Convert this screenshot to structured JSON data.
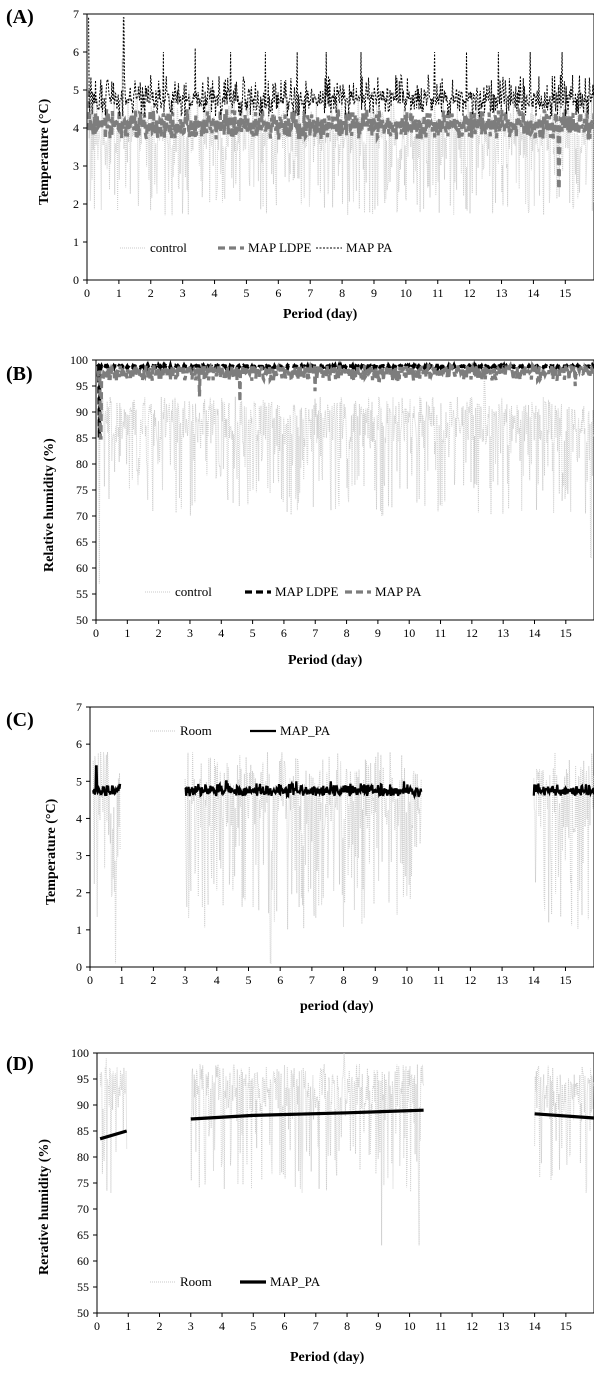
{
  "colors": {
    "light_gray": "#c8c8c8",
    "mid_gray": "#7d7d7d",
    "black": "#000000"
  },
  "chart_data": [
    {
      "id": "A",
      "panel_label": "(A)",
      "type": "line",
      "xlabel": "Period (day)",
      "ylabel": "Temperature (°C)",
      "xlim": [
        0,
        15.9
      ],
      "ylim": [
        0,
        7
      ],
      "xticks": [
        0,
        1,
        2,
        3,
        4,
        5,
        6,
        7,
        8,
        9,
        10,
        11,
        12,
        13,
        14,
        15
      ],
      "yticks": [
        0,
        1,
        2,
        3,
        4,
        5,
        6,
        7
      ],
      "grid": false,
      "legend_position": "lower-left",
      "series": [
        {
          "name": "control",
          "style": "light-dotted",
          "color": "#c8c8c8",
          "base": 3.9,
          "low": 1.7,
          "high": 4.9,
          "spikes": [
            [
              0.05,
              6.2
            ],
            [
              1.1,
              5.8
            ],
            [
              3.2,
              5.0
            ]
          ]
        },
        {
          "name": "MAP LDPE",
          "style": "gray-thick-dash",
          "color": "#7d7d7d",
          "base": 4.1,
          "low": 3.7,
          "high": 4.5,
          "spikes": [
            [
              0.05,
              5.0
            ],
            [
              14.8,
              2.4
            ]
          ]
        },
        {
          "name": "MAP PA",
          "style": "black-dotted",
          "color": "#000000",
          "base": 4.8,
          "low": 4.3,
          "high": 5.4,
          "spikes": [
            [
              0.05,
              6.9
            ],
            [
              1.15,
              6.9
            ],
            [
              2.4,
              6.0
            ],
            [
              3.4,
              6.1
            ],
            [
              4.5,
              6.0
            ],
            [
              5.6,
              6.0
            ],
            [
              6.6,
              6.0
            ],
            [
              7.5,
              6.0
            ],
            [
              8.6,
              6.0
            ],
            [
              10.9,
              6.0
            ],
            [
              11.9,
              6.0
            ],
            [
              12.9,
              6.0
            ],
            [
              13.9,
              6.0
            ],
            [
              14.9,
              6.0
            ]
          ]
        }
      ]
    },
    {
      "id": "B",
      "panel_label": "(B)",
      "type": "line",
      "xlabel": "Period (day)",
      "ylabel": "Relative humidity (%)",
      "xlim": [
        0,
        15.9
      ],
      "ylim": [
        50,
        100
      ],
      "xticks": [
        0,
        1,
        2,
        3,
        4,
        5,
        6,
        7,
        8,
        9,
        10,
        11,
        12,
        13,
        14,
        15
      ],
      "yticks": [
        50,
        55,
        60,
        65,
        70,
        75,
        80,
        85,
        90,
        95,
        100
      ],
      "grid": false,
      "legend_position": "lower-center",
      "series": [
        {
          "name": "control",
          "style": "light-dotted",
          "color": "#c8c8c8",
          "base": 88,
          "low": 70,
          "high": 93,
          "spikes": [
            [
              0.1,
              57
            ],
            [
              12.4,
              96
            ],
            [
              15.8,
              62
            ]
          ]
        },
        {
          "name": "MAP LDPE",
          "style": "black-thick-dash",
          "color": "#000000",
          "base": 98.8,
          "low": 98.5,
          "high": 99.0,
          "spikes": [
            [
              0.1,
              85
            ]
          ]
        },
        {
          "name": "MAP PA",
          "style": "gray-thick-dash",
          "color": "#7d7d7d",
          "base": 97.8,
          "low": 96.0,
          "high": 99.0,
          "spikes": [
            [
              0.15,
              85
            ],
            [
              3.3,
              93
            ],
            [
              4.6,
              92
            ],
            [
              7.0,
              94
            ],
            [
              15.3,
              95
            ]
          ]
        }
      ]
    },
    {
      "id": "C",
      "panel_label": "(C)",
      "type": "line",
      "xlabel": "period (day)",
      "ylabel": "Temperature (°C)",
      "xlim": [
        0,
        15.9
      ],
      "ylim": [
        0,
        7
      ],
      "xticks": [
        0,
        1,
        2,
        3,
        4,
        5,
        6,
        7,
        8,
        9,
        10,
        11,
        12,
        13,
        14,
        15
      ],
      "yticks": [
        0,
        1,
        2,
        3,
        4,
        5,
        6,
        7
      ],
      "grid": false,
      "legend_position": "top-left",
      "segments": [
        [
          0.1,
          0.95
        ],
        [
          3.0,
          10.45
        ],
        [
          14.0,
          15.9
        ]
      ],
      "series": [
        {
          "name": "Room",
          "style": "light-dotted",
          "color": "#c8c8c8",
          "base": 4.5,
          "low": 1.0,
          "high": 5.8,
          "spikes": [
            [
              5.7,
              0.1
            ],
            [
              0.8,
              0.1
            ]
          ]
        },
        {
          "name": "MAP_PA",
          "style": "black-solid",
          "color": "#000000",
          "base": 4.75,
          "low": 4.6,
          "high": 4.95,
          "spikes": [
            [
              0.2,
              5.4
            ],
            [
              4.3,
              5.0
            ],
            [
              6.5,
              5.0
            ],
            [
              7.6,
              5.0
            ],
            [
              9.9,
              5.0
            ]
          ]
        }
      ]
    },
    {
      "id": "D",
      "panel_label": "(D)",
      "type": "line",
      "xlabel": "Period (day)",
      "ylabel": "Rerative humidity (%)",
      "xlim": [
        0,
        15.9
      ],
      "ylim": [
        50,
        100
      ],
      "xticks": [
        0,
        1,
        2,
        3,
        4,
        5,
        6,
        7,
        8,
        9,
        10,
        11,
        12,
        13,
        14,
        15
      ],
      "yticks": [
        50,
        55,
        60,
        65,
        70,
        75,
        80,
        85,
        90,
        95,
        100
      ],
      "grid": false,
      "legend_position": "lower-left",
      "segments": [
        [
          0.1,
          0.95
        ],
        [
          3.0,
          10.45
        ],
        [
          14.0,
          15.9
        ]
      ],
      "series": [
        {
          "name": "Room",
          "style": "light-dotted",
          "color": "#c8c8c8",
          "base": 93,
          "low": 73,
          "high": 98,
          "spikes": [
            [
              0.3,
              99
            ],
            [
              7.9,
              100
            ],
            [
              9.1,
              63
            ],
            [
              10.3,
              63
            ]
          ]
        },
        {
          "name": "MAP_PA",
          "style": "black-trend",
          "color": "#000000",
          "trend": [
            [
              0.1,
              83.5
            ],
            [
              0.95,
              85.0
            ],
            [
              3.0,
              87.3
            ],
            [
              5.0,
              88.0
            ],
            [
              8.0,
              88.5
            ],
            [
              10.45,
              89.0
            ],
            [
              14.0,
              88.3
            ],
            [
              15.9,
              87.5
            ]
          ]
        }
      ]
    }
  ]
}
